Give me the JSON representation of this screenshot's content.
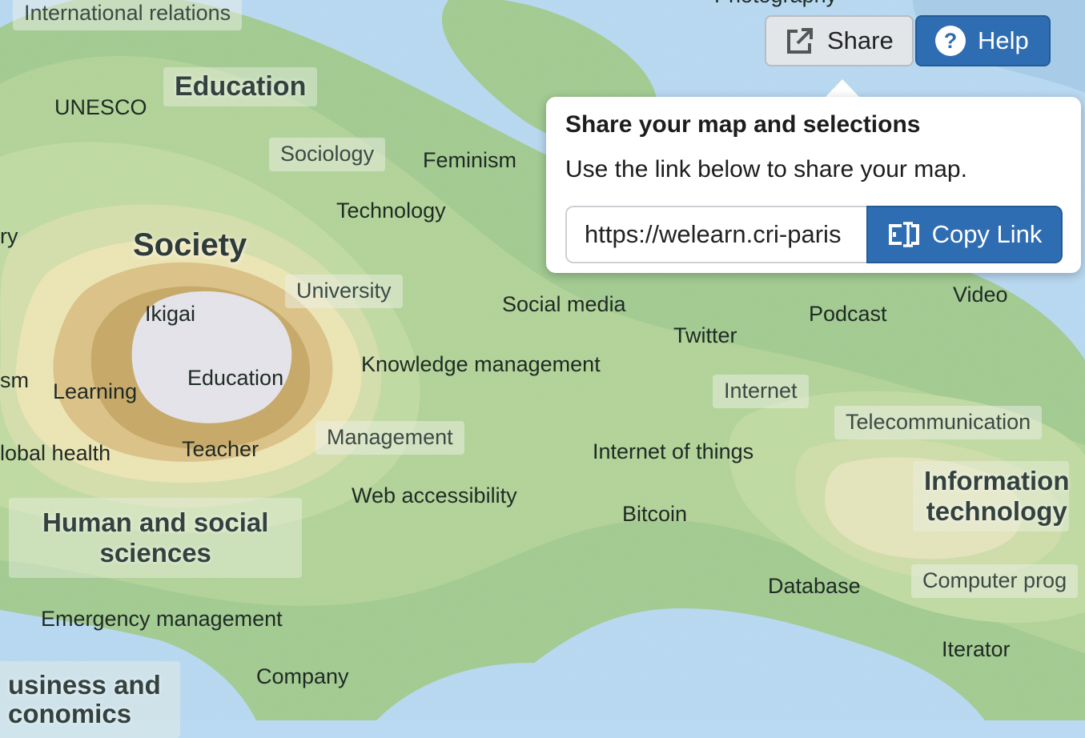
{
  "toolbar": {
    "share_label": "Share",
    "help_label": "Help",
    "share_icon": "external-link-icon",
    "help_icon": "question-circle-icon"
  },
  "share_popover": {
    "title": "Share your map and selections",
    "description": "Use the link below to share your map.",
    "link_value": "https://welearn.cri-paris",
    "copy_label": "Copy Link",
    "copy_icon": "text-cursor-icon"
  },
  "colors": {
    "water": "#b9daf2",
    "land_low": "#a9cf94",
    "land_mid": "#cfe0a8",
    "land_high": "#c8ab6c",
    "peak": "#e3e3e8",
    "button_blue": "#2f6db2"
  },
  "map_labels": {
    "international_relations": "International relations",
    "photography": "Photography",
    "education_region": "Education",
    "unesco": "UNESCO",
    "sociology": "Sociology",
    "feminism": "Feminism",
    "technology": "Technology",
    "history_partial": "ry",
    "society": "Society",
    "university": "University",
    "ikigai": "Ikigai",
    "social_media": "Social media",
    "twitter": "Twitter",
    "podcast": "Podcast",
    "video": "Video",
    "ism_partial": "sm",
    "learning": "Learning",
    "education": "Education",
    "knowledge_management": "Knowledge management",
    "internet": "Internet",
    "telecommunication": "Telecommunication",
    "global_health_partial": "lobal health",
    "teacher": "Teacher",
    "management": "Management",
    "internet_of_things": "Internet of things",
    "information_technology_1": "Information",
    "information_technology_2": "technology",
    "web_accessibility": "Web accessibility",
    "bitcoin": "Bitcoin",
    "human_social_sciences_1": "Human and social",
    "human_social_sciences_2": "sciences",
    "database": "Database",
    "computer_programming_partial": "Computer prog",
    "emergency_management": "Emergency management",
    "iterator": "Iterator",
    "company": "Company",
    "business_economics_1": "usiness and",
    "business_economics_2": "conomics"
  }
}
